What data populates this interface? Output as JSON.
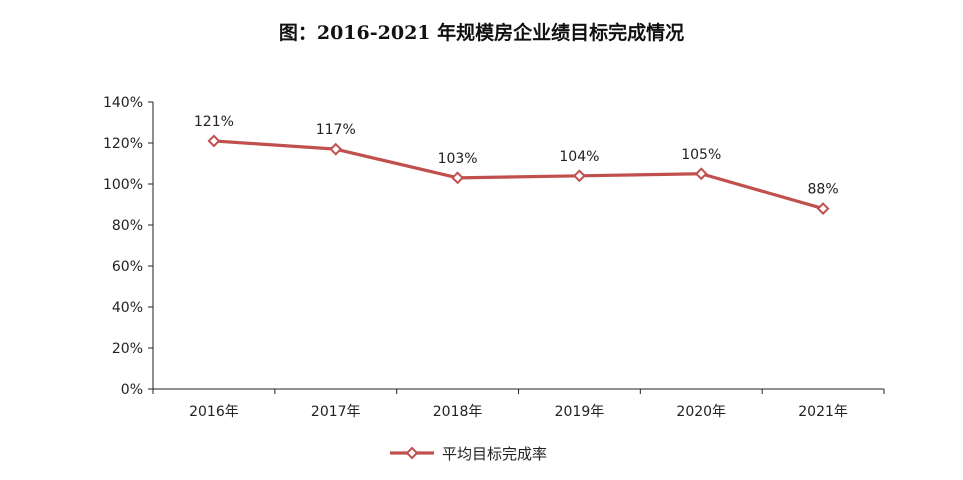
{
  "title": "图：2016-2021 年规模房企业绩目标完成情况",
  "chart_data": {
    "type": "line",
    "categories": [
      "2016年",
      "2017年",
      "2018年",
      "2019年",
      "2020年",
      "2021年"
    ],
    "series": [
      {
        "name": "平均目标完成率",
        "values": [
          121,
          117,
          103,
          104,
          105,
          88
        ],
        "data_labels": [
          "121%",
          "117%",
          "103%",
          "104%",
          "105%",
          "88%"
        ],
        "color": "#c0504d",
        "marker": "diamond"
      }
    ],
    "y_ticks": [
      "0%",
      "20%",
      "40%",
      "60%",
      "80%",
      "100%",
      "120%",
      "140%"
    ],
    "ylim": [
      0,
      140
    ],
    "y_unit": "%",
    "grid": false,
    "legend_position": "bottom-center",
    "xlabel": "",
    "ylabel": ""
  }
}
